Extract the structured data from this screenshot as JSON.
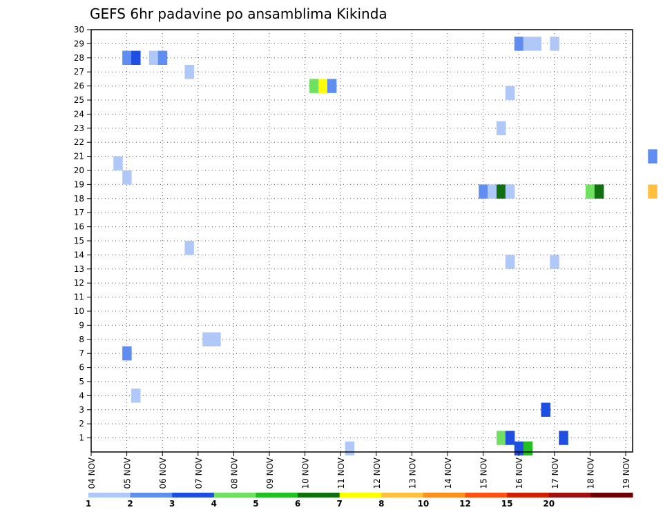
{
  "chart_data": {
    "type": "heatmap",
    "title": "GEFS 6hr padavine po ansamblima Kikinda",
    "xlabel": "",
    "ylabel": "",
    "x_tick_labels": [
      "04 NOV",
      "05 NOV",
      "06 NOV",
      "07 NOV",
      "08 NOV",
      "09 NOV",
      "10 NOV",
      "11 NOV",
      "12 NOV",
      "13 NOV",
      "14 NOV",
      "15 NOV",
      "16 NOV",
      "17 NOV",
      "18 NOV",
      "19 NOV"
    ],
    "xlim": [
      0,
      15.25
    ],
    "ylim": [
      0,
      30
    ],
    "y_ticks": [
      1,
      2,
      3,
      4,
      5,
      6,
      7,
      8,
      9,
      10,
      11,
      12,
      13,
      14,
      15,
      16,
      17,
      18,
      19,
      20,
      21,
      22,
      23,
      24,
      25,
      26,
      27,
      28,
      29,
      30
    ],
    "grid": true,
    "colorbar": {
      "position": "bottom",
      "colors": [
        "#b0c8f8",
        "#5f8ef0",
        "#1f4fe0",
        "#70e060",
        "#20c020",
        "#107010",
        "#ffff00",
        "#ffc040",
        "#ff9020",
        "#ff5010",
        "#d02000",
        "#a01010",
        "#700000"
      ],
      "labels": [
        "1",
        "2",
        "3",
        "4",
        "5",
        "6",
        "7",
        "8",
        "10",
        "12",
        "15",
        "20"
      ]
    },
    "cells": [
      {
        "day": 1.0,
        "member": 28,
        "level": 2
      },
      {
        "day": 1.25,
        "member": 28,
        "level": 3
      },
      {
        "day": 1.75,
        "member": 28,
        "level": 1
      },
      {
        "day": 2.0,
        "member": 28,
        "level": 2
      },
      {
        "day": 2.75,
        "member": 27,
        "level": 1
      },
      {
        "day": 6.25,
        "member": 26,
        "level": 4
      },
      {
        "day": 6.5,
        "member": 26,
        "level": 7
      },
      {
        "day": 6.75,
        "member": 26,
        "level": 2
      },
      {
        "day": 11.75,
        "member": 25.5,
        "level": 1
      },
      {
        "day": 11.5,
        "member": 23,
        "level": 1
      },
      {
        "day": 12.0,
        "member": 29,
        "level": 2
      },
      {
        "day": 12.25,
        "member": 29,
        "level": 1
      },
      {
        "day": 12.5,
        "member": 29,
        "level": 1
      },
      {
        "day": 13.0,
        "member": 29,
        "level": 1
      },
      {
        "day": 0.75,
        "member": 20.5,
        "level": 1
      },
      {
        "day": 1.0,
        "member": 19.5,
        "level": 1
      },
      {
        "day": 15.75,
        "member": 21,
        "level": 2
      },
      {
        "day": 11.0,
        "member": 18.5,
        "level": 2
      },
      {
        "day": 11.25,
        "member": 18.5,
        "level": 1
      },
      {
        "day": 11.5,
        "member": 18.5,
        "level": 6
      },
      {
        "day": 11.75,
        "member": 18.5,
        "level": 1
      },
      {
        "day": 14.0,
        "member": 18.5,
        "level": 4
      },
      {
        "day": 14.25,
        "member": 18.5,
        "level": 6
      },
      {
        "day": 15.75,
        "member": 18.5,
        "level": 8
      },
      {
        "day": 2.75,
        "member": 14.5,
        "level": 1
      },
      {
        "day": 11.75,
        "member": 13.5,
        "level": 1
      },
      {
        "day": 13.0,
        "member": 13.5,
        "level": 1
      },
      {
        "day": 3.25,
        "member": 8,
        "level": 1
      },
      {
        "day": 3.5,
        "member": 8,
        "level": 1
      },
      {
        "day": 1.0,
        "member": 7,
        "level": 2
      },
      {
        "day": 1.25,
        "member": 4,
        "level": 1
      },
      {
        "day": 12.75,
        "member": 3,
        "level": 3
      },
      {
        "day": 11.5,
        "member": 1,
        "level": 4
      },
      {
        "day": 11.75,
        "member": 1,
        "level": 3
      },
      {
        "day": 13.25,
        "member": 1,
        "level": 3
      },
      {
        "day": 7.25,
        "member": 0.25,
        "level": 1
      },
      {
        "day": 12.0,
        "member": 0.25,
        "level": 3
      },
      {
        "day": 12.25,
        "member": 0.25,
        "level": 5
      }
    ]
  }
}
